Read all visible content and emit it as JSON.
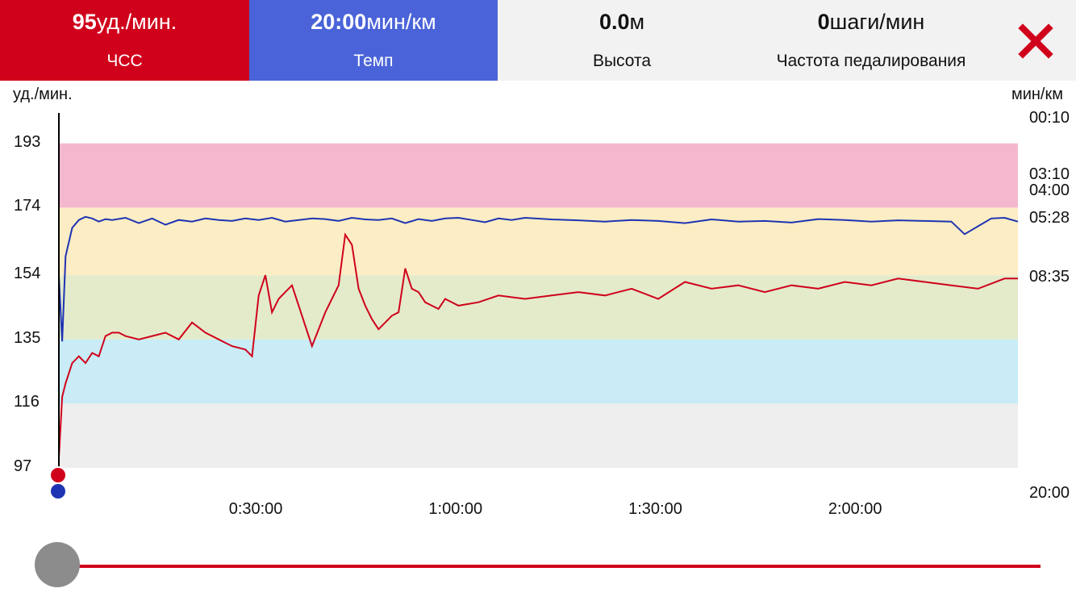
{
  "header": {
    "hr": {
      "value": "95",
      "unit": "уд./мин.",
      "label": "ЧСС"
    },
    "pace": {
      "value": "20:00",
      "unit": "мин/км",
      "label": "Темп"
    },
    "altitude": {
      "value": "0.0",
      "unit": "м",
      "label": "Высота"
    },
    "cadence": {
      "value": "0",
      "unit": "шаги/мин",
      "label": "Частота педалирования"
    },
    "close_icon": "close-icon"
  },
  "chart_data": {
    "type": "line",
    "left_axis": {
      "label": "уд./мин.",
      "ticks": [
        193,
        174,
        154,
        135,
        116,
        97
      ],
      "range": [
        97,
        202
      ]
    },
    "right_axis": {
      "label": "мин/км",
      "ticks": [
        "00:10",
        "03:10",
        "04:00",
        "05:28",
        "08:35",
        "20:00"
      ]
    },
    "x_axis": {
      "ticks": [
        "0:30:00",
        "1:00:00",
        "1:30:00",
        "2:00:00"
      ]
    },
    "zones": [
      {
        "from": 97,
        "to": 116,
        "color": "#eeeeee"
      },
      {
        "from": 116,
        "to": 135,
        "color": "#c9ecf6"
      },
      {
        "from": 135,
        "to": 154,
        "color": "#e3ebcb"
      },
      {
        "from": 154,
        "to": 174,
        "color": "#fcedc4"
      },
      {
        "from": 174,
        "to": 193,
        "color": "#f5b7ce"
      }
    ],
    "series": [
      {
        "key": "hr",
        "color": "#d0021b",
        "x": [
          0,
          0.5,
          1,
          2,
          3,
          4,
          5,
          6,
          7,
          8,
          9,
          10,
          12,
          14,
          16,
          18,
          20,
          22,
          24,
          26,
          28,
          29,
          30,
          31,
          32,
          33,
          34,
          35,
          36,
          38,
          40,
          41,
          42,
          43,
          44,
          45,
          46,
          47,
          48,
          49,
          50,
          51,
          52,
          53,
          54,
          55,
          56,
          57,
          58,
          60,
          63,
          66,
          70,
          74,
          78,
          82,
          86,
          90,
          94,
          98,
          102,
          106,
          110,
          114,
          118,
          122,
          126,
          130,
          134,
          138,
          142,
          144
        ],
        "values": [
          100,
          118,
          122,
          128,
          130,
          128,
          131,
          130,
          136,
          137,
          137,
          136,
          135,
          136,
          137,
          135,
          140,
          137,
          135,
          133,
          132,
          130,
          148,
          154,
          143,
          147,
          149,
          151,
          145,
          133,
          143,
          147,
          151,
          166,
          163,
          150,
          145,
          141,
          138,
          140,
          142,
          143,
          156,
          150,
          149,
          146,
          145,
          144,
          147,
          145,
          146,
          148,
          147,
          148,
          149,
          148,
          150,
          147,
          152,
          150,
          151,
          149,
          151,
          150,
          152,
          151,
          153,
          152,
          151,
          150,
          153,
          153
        ]
      },
      {
        "key": "pace",
        "color": "#1e33b4",
        "x": [
          0,
          0.5,
          1,
          2,
          3,
          4,
          5,
          6,
          7,
          8,
          10,
          12,
          14,
          16,
          18,
          20,
          22,
          24,
          26,
          28,
          30,
          32,
          34,
          36,
          38,
          40,
          42,
          44,
          46,
          48,
          50,
          52,
          54,
          56,
          58,
          60,
          62,
          64,
          66,
          68,
          70,
          74,
          78,
          82,
          86,
          90,
          94,
          98,
          102,
          106,
          110,
          114,
          118,
          122,
          126,
          130,
          134,
          136,
          138,
          140,
          142,
          144
        ],
        "values": [
          "08:35",
          "12:00",
          "07:30",
          "06:00",
          "05:35",
          "05:25",
          "05:30",
          "05:40",
          "05:32",
          "05:35",
          "05:28",
          "05:45",
          "05:30",
          "05:50",
          "05:35",
          "05:40",
          "05:30",
          "05:35",
          "05:38",
          "05:30",
          "05:35",
          "05:28",
          "05:40",
          "05:35",
          "05:30",
          "05:32",
          "05:38",
          "05:28",
          "05:33",
          "05:35",
          "05:30",
          "05:45",
          "05:32",
          "05:38",
          "05:30",
          "05:28",
          "05:35",
          "05:42",
          "05:30",
          "05:35",
          "05:28",
          "05:33",
          "05:36",
          "05:40",
          "05:35",
          "05:38",
          "05:45",
          "05:33",
          "05:40",
          "05:38",
          "05:43",
          "05:32",
          "05:35",
          "05:40",
          "05:36",
          "05:38",
          "05:40",
          "06:20",
          "05:55",
          "05:30",
          "05:28",
          "05:40"
        ]
      }
    ],
    "cursor_time": 0
  },
  "slider": {
    "position": 0
  }
}
